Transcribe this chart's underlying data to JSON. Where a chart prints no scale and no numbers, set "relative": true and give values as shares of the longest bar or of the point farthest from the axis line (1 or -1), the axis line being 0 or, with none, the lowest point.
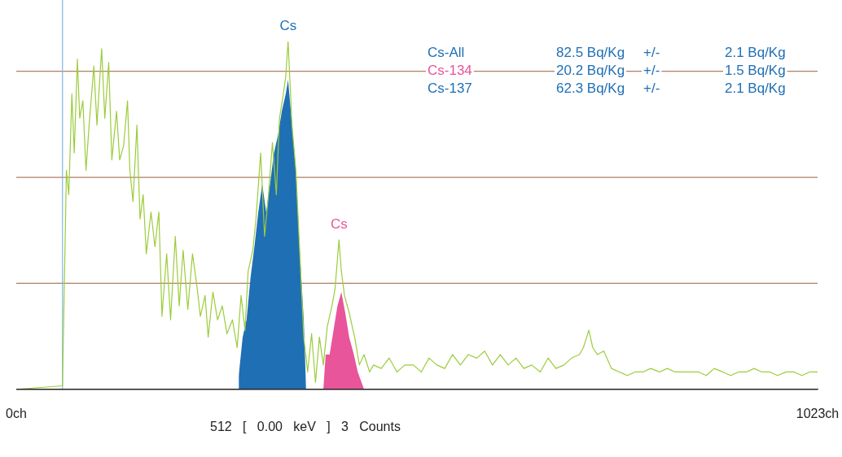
{
  "chart_data": {
    "type": "line",
    "relative": true,
    "legend": false,
    "grid": false,
    "marker": "none",
    "line_style": "solid",
    "xlim": [
      0,
      1023
    ],
    "xticks": [
      {
        "value": 0,
        "label": "0ch"
      },
      {
        "value": 1023,
        "label": "1023ch"
      }
    ],
    "series": [
      {
        "type": "area",
        "color": "#1f6fb5",
        "x": [
          284,
          289,
          294,
          299,
          304,
          309,
          314,
          319,
          324,
          329,
          334,
          339,
          344,
          347,
          352,
          357,
          362,
          367,
          370
        ],
        "values": [
          0.04,
          0.15,
          0.2,
          0.32,
          0.41,
          0.51,
          0.59,
          0.51,
          0.59,
          0.68,
          0.73,
          0.8,
          0.85,
          0.89,
          0.76,
          0.63,
          0.39,
          0.2,
          0
        ]
      },
      {
        "type": "area",
        "color": "#e8559a",
        "x": [
          392,
          395,
          400,
          405,
          410,
          415,
          420,
          425,
          431,
          436,
          444
        ],
        "values": [
          0,
          0.1,
          0.1,
          0.17,
          0.24,
          0.28,
          0.22,
          0.15,
          0.1,
          0.05,
          0
        ]
      },
      {
        "type": "line",
        "color": "#9ccc3c",
        "x": [
          0,
          59,
          64,
          67,
          71,
          74,
          78,
          81,
          85,
          89,
          93,
          99,
          103,
          109,
          113,
          118,
          122,
          128,
          132,
          137,
          142,
          145,
          149,
          154,
          158,
          162,
          166,
          172,
          177,
          182,
          186,
          192,
          197,
          203,
          208,
          213,
          219,
          225,
          231,
          235,
          241,
          245,
          251,
          257,
          263,
          269,
          276,
          282,
          287,
          292,
          296,
          302,
          306,
          312,
          317,
          322,
          327,
          332,
          336,
          341,
          344,
          347,
          352,
          357,
          362,
          367,
          372,
          377,
          382,
          387,
          392,
          397,
          403,
          407,
          412,
          415,
          419,
          425,
          432,
          438,
          444,
          451,
          456,
          466,
          476,
          486,
          496,
          507,
          517,
          527,
          537,
          547,
          557,
          567,
          577,
          588,
          598,
          608,
          618,
          628,
          638,
          648,
          658,
          669,
          679,
          689,
          699,
          709,
          719,
          724,
          731,
          736,
          742,
          750,
          760,
          770,
          780,
          790,
          800,
          810,
          821,
          831,
          841,
          851,
          861,
          871,
          881,
          891,
          902,
          912,
          922,
          932,
          942,
          952,
          962,
          972,
          983,
          993,
          1003,
          1013,
          1023
        ],
        "values": [
          0,
          0.01,
          0.63,
          0.56,
          0.85,
          0.68,
          0.95,
          0.78,
          0.83,
          0.63,
          0.76,
          0.93,
          0.76,
          0.98,
          0.78,
          0.94,
          0.66,
          0.8,
          0.66,
          0.7,
          0.83,
          0.63,
          0.54,
          0.76,
          0.49,
          0.56,
          0.39,
          0.51,
          0.41,
          0.51,
          0.21,
          0.39,
          0.2,
          0.44,
          0.24,
          0.4,
          0.23,
          0.39,
          0.29,
          0.21,
          0.27,
          0.15,
          0.28,
          0.2,
          0.24,
          0.16,
          0.2,
          0.12,
          0.27,
          0.17,
          0.34,
          0.4,
          0.49,
          0.68,
          0.44,
          0.56,
          0.71,
          0.56,
          0.78,
          0.85,
          0.9,
          1,
          0.76,
          0.63,
          0.39,
          0.15,
          0.05,
          0.16,
          0.02,
          0.15,
          0.07,
          0.18,
          0.24,
          0.29,
          0.43,
          0.34,
          0.27,
          0.22,
          0.15,
          0.07,
          0.1,
          0.05,
          0.07,
          0.06,
          0.09,
          0.05,
          0.07,
          0.07,
          0.05,
          0.09,
          0.07,
          0.06,
          0.1,
          0.07,
          0.1,
          0.09,
          0.11,
          0.07,
          0.1,
          0.07,
          0.09,
          0.06,
          0.07,
          0.05,
          0.09,
          0.06,
          0.07,
          0.09,
          0.1,
          0.12,
          0.17,
          0.12,
          0.1,
          0.11,
          0.06,
          0.05,
          0.04,
          0.05,
          0.05,
          0.06,
          0.05,
          0.06,
          0.05,
          0.05,
          0.05,
          0.05,
          0.04,
          0.06,
          0.05,
          0.04,
          0.05,
          0.05,
          0.06,
          0.05,
          0.05,
          0.04,
          0.05,
          0.05,
          0.04,
          0.05,
          0.05
        ]
      }
    ],
    "ref_lines": [
      {
        "axis": "y",
        "value": 0.915,
        "color": "#b08060"
      },
      {
        "axis": "y",
        "value": 0.61,
        "color": "#b08060"
      },
      {
        "axis": "y",
        "value": 0.305,
        "color": "#b08060"
      },
      {
        "axis": "x",
        "value": 59,
        "color": "#7fb8e0"
      }
    ],
    "annotations": [
      "Cs-All",
      "82.5 Bq/Kg",
      "+/-",
      "2.1 Bq/Kg",
      "Cs-134",
      "20.2 Bq/Kg",
      "+/-",
      "1.5 Bq/Kg",
      "Cs-137",
      "62.3 Bq/Kg",
      "+/-",
      "2.1 Bq/Kg",
      "512   [   0.00   keV   ]   3   Counts",
      {
        "text": "Cs",
        "x": 347,
        "y": 1
      },
      {
        "text": "Cs",
        "x": 412,
        "y": 0.43
      }
    ]
  }
}
